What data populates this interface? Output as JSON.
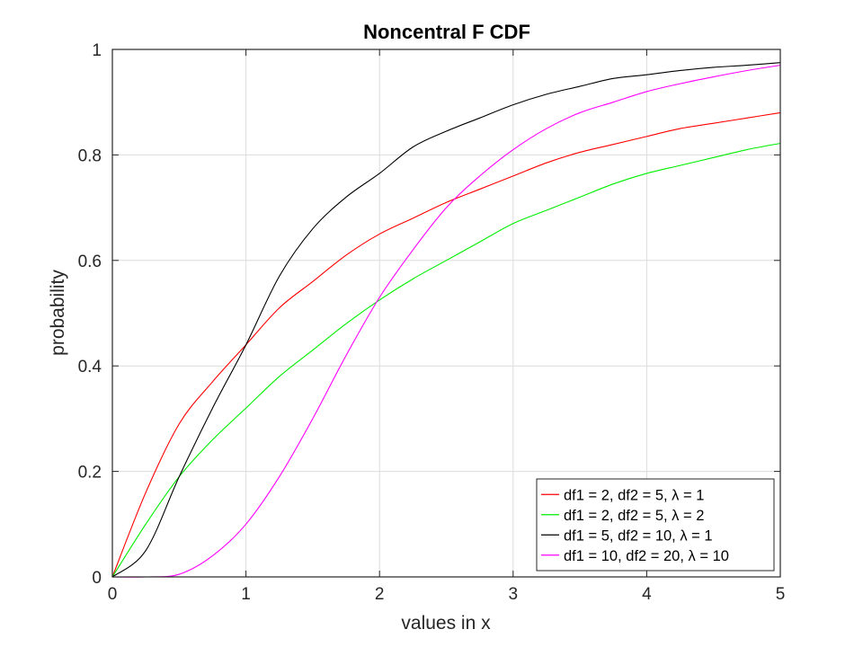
{
  "chart_data": {
    "type": "line",
    "title": "Noncentral F CDF",
    "xlabel": "values in x",
    "ylabel": "probability",
    "xlim": [
      0,
      5
    ],
    "ylim": [
      0,
      1
    ],
    "xticks": [
      0,
      1,
      2,
      3,
      4,
      5
    ],
    "xtick_labels": [
      "0",
      "1",
      "2",
      "3",
      "4",
      "5"
    ],
    "yticks": [
      0,
      0.2,
      0.4,
      0.6,
      0.8,
      1
    ],
    "ytick_labels": [
      "0",
      "0.2",
      "0.4",
      "0.6",
      "0.8",
      "1"
    ],
    "grid": true,
    "legend_position": "bottom-right",
    "x": [
      0,
      0.25,
      0.5,
      0.75,
      1,
      1.25,
      1.5,
      1.75,
      2,
      2.25,
      2.5,
      2.75,
      3,
      3.25,
      3.5,
      3.75,
      4,
      4.25,
      4.5,
      4.75,
      5
    ],
    "series": [
      {
        "name": "df1 = 2, df2 = 5, λ = 1",
        "color": "#ff0000",
        "values": [
          0,
          0.16,
          0.29,
          0.37,
          0.44,
          0.51,
          0.56,
          0.61,
          0.65,
          0.68,
          0.71,
          0.735,
          0.76,
          0.785,
          0.805,
          0.82,
          0.835,
          0.85,
          0.86,
          0.87,
          0.88
        ]
      },
      {
        "name": "df1 = 2, df2 = 5, λ = 2",
        "color": "#00ee00",
        "values": [
          0,
          0.1,
          0.19,
          0.26,
          0.32,
          0.38,
          0.43,
          0.48,
          0.525,
          0.565,
          0.6,
          0.635,
          0.67,
          0.695,
          0.72,
          0.745,
          0.765,
          0.78,
          0.795,
          0.81,
          0.822
        ]
      },
      {
        "name": "df1 = 5, df2 = 10, λ = 1",
        "color": "#000000",
        "values": [
          0,
          0.05,
          0.19,
          0.32,
          0.44,
          0.57,
          0.66,
          0.72,
          0.765,
          0.815,
          0.845,
          0.87,
          0.895,
          0.915,
          0.93,
          0.945,
          0.952,
          0.96,
          0.966,
          0.97,
          0.975
        ]
      },
      {
        "name": "df1 = 10, df2 = 20, λ = 10",
        "color": "#ff00ff",
        "values": [
          0,
          0,
          0.005,
          0.04,
          0.1,
          0.19,
          0.3,
          0.42,
          0.53,
          0.62,
          0.7,
          0.76,
          0.81,
          0.85,
          0.88,
          0.9,
          0.92,
          0.935,
          0.948,
          0.96,
          0.97
        ]
      }
    ]
  }
}
